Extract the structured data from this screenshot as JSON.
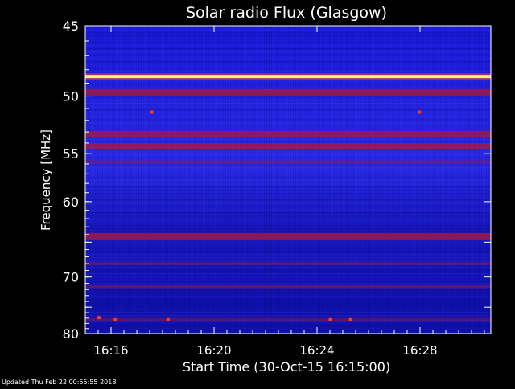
{
  "chart_data": {
    "type": "heatmap",
    "title": "Solar radio Flux (Glasgow)",
    "xlabel": "Start Time (30-Oct-15 16:15:00)",
    "ylabel": "Frequency [MHz]",
    "x_unit": "minutes",
    "xlim": [
      "16:15:00",
      "16:30:45"
    ],
    "ylim": [
      45,
      80
    ],
    "x_ticks": [
      "16:16",
      "16:20",
      "16:24",
      "16:28"
    ],
    "y_ticks": [
      45,
      50,
      55,
      60,
      65,
      70,
      75,
      80
    ],
    "y_tick_labels": [
      "45",
      "50",
      "55",
      "60",
      "",
      "70",
      "",
      "80"
    ],
    "emission_bands": [
      {
        "frequency_mhz": 48.5,
        "level": "strong"
      },
      {
        "frequency_mhz": 49.7,
        "level": "medium"
      },
      {
        "frequency_mhz": 53.2,
        "level": "medium"
      },
      {
        "frequency_mhz": 54.3,
        "level": "medium"
      },
      {
        "frequency_mhz": 55.8,
        "level": "weak"
      },
      {
        "frequency_mhz": 64.2,
        "level": "medium"
      },
      {
        "frequency_mhz": 68.0,
        "level": "weak"
      },
      {
        "frequency_mhz": 71.5,
        "level": "weak"
      },
      {
        "frequency_mhz": 77.3,
        "level": "weak"
      }
    ],
    "colors": {
      "background": "#000000",
      "low": "#0a0a8c",
      "mid": "#3030f0",
      "band": "#9b1a4a",
      "high": "#ff3b1f",
      "peak": "#fff36a"
    }
  },
  "footer": {
    "updated": "Updated Thu Feb 22 00:55:55 2018"
  }
}
